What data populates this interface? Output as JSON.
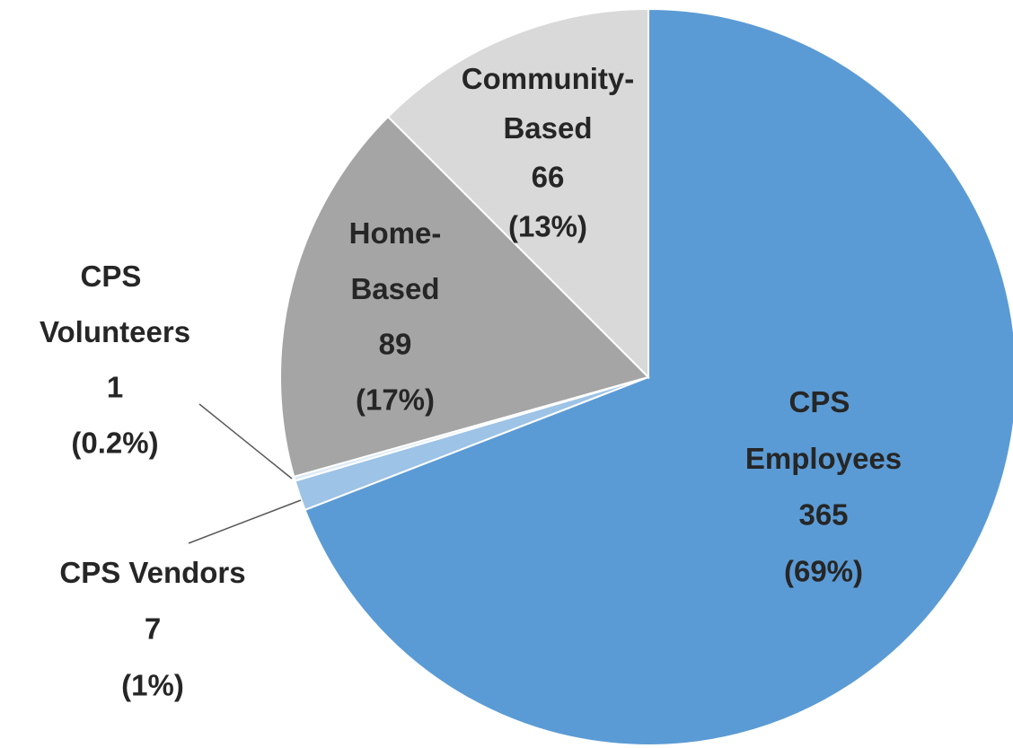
{
  "chart_data": {
    "type": "pie",
    "categories": [
      "CPS Employees",
      "CPS Vendors",
      "CPS Volunteers",
      "Home-Based",
      "Community-Based"
    ],
    "values": [
      365,
      7,
      1,
      89,
      66
    ],
    "percent_labels": [
      "(69%)",
      "(1%)",
      "(0.2%)",
      "(17%)",
      "(13%)"
    ],
    "colors": [
      "#5b9bd5",
      "#9dc3e6",
      "#deebf7",
      "#a5a5a5",
      "#d9d9d9"
    ]
  }
}
